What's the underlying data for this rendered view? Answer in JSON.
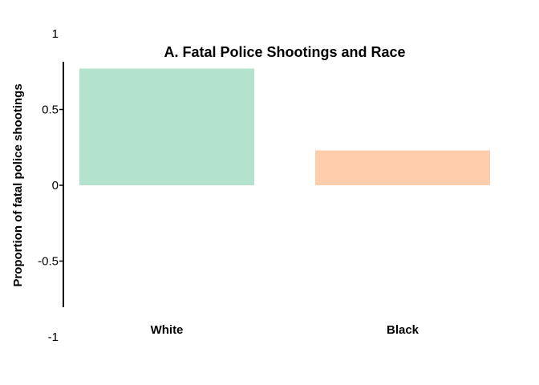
{
  "chart_data": {
    "type": "bar",
    "title": "A. Fatal Police Shootings and Race",
    "ylabel": "Proportion of fatal police shootings",
    "xlabel": "",
    "categories": [
      "White",
      "Black"
    ],
    "values": [
      0.77,
      0.23
    ],
    "colors": [
      "#b3e2cd",
      "#fdcdac"
    ],
    "ylim": [
      -1,
      1
    ],
    "yticks": [
      -1,
      -0.5,
      0,
      0.5,
      1
    ],
    "ytick_labels": [
      "-1",
      "-0.5",
      "0",
      "0.5",
      "1"
    ],
    "grid": false,
    "legend": "none"
  }
}
